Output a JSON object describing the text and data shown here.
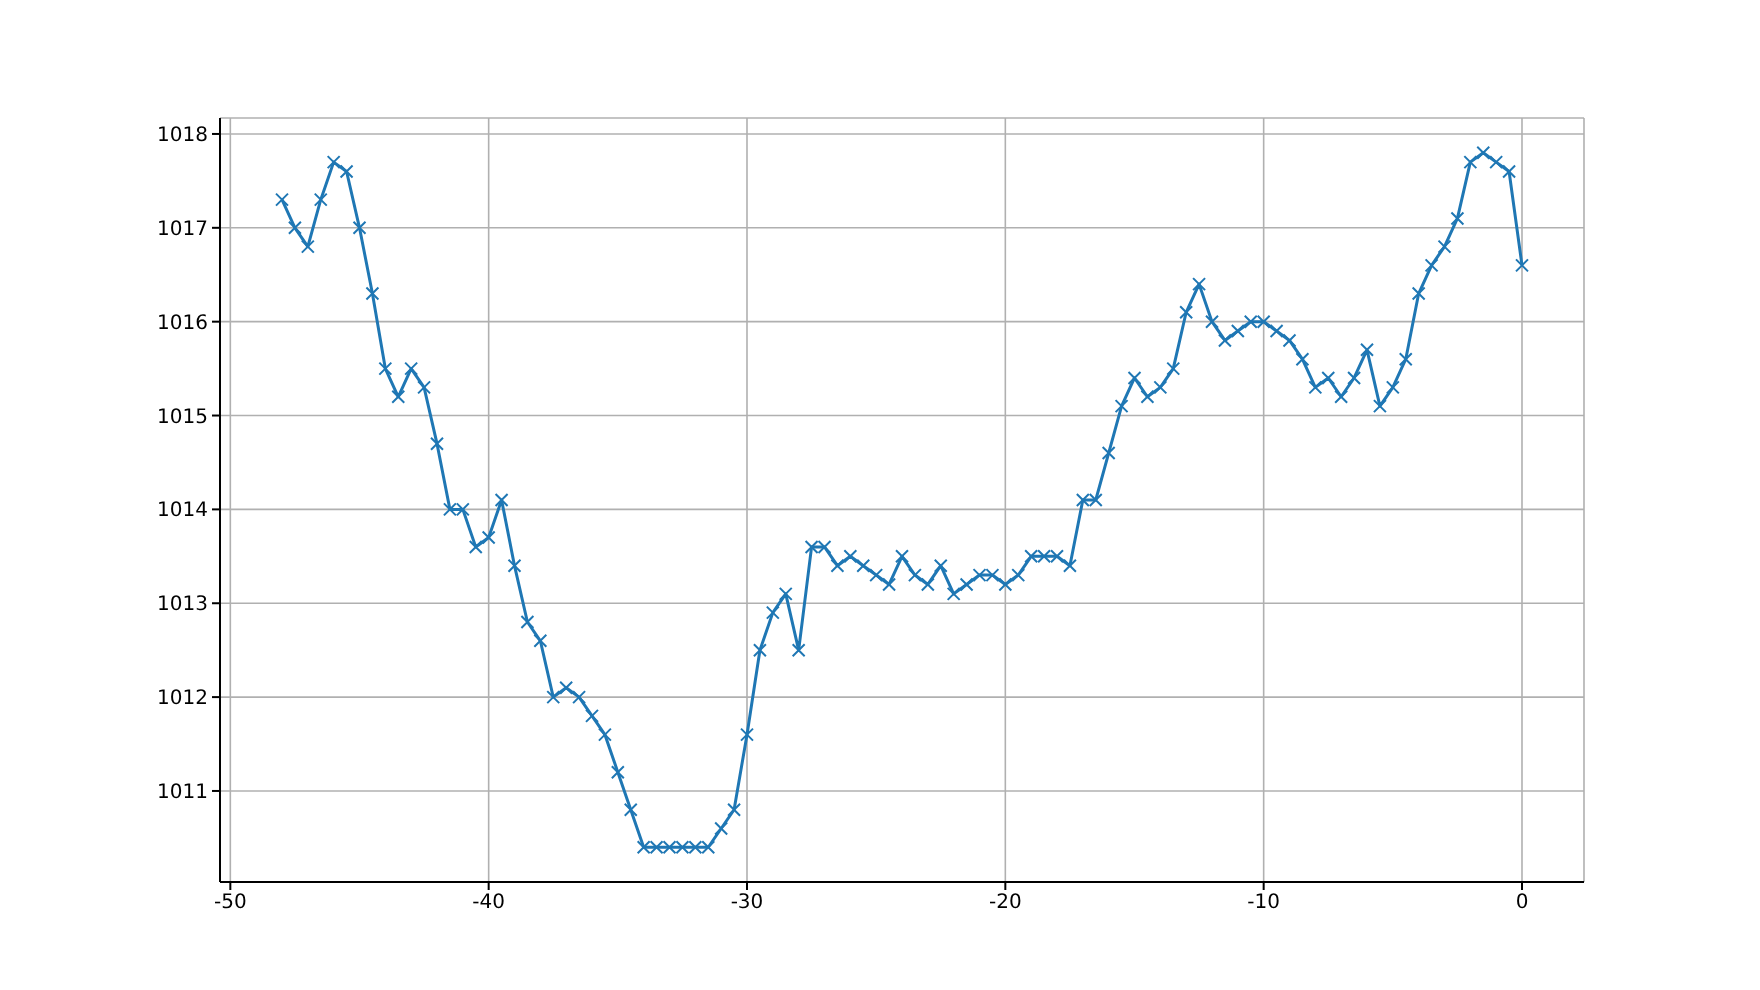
{
  "chart_data": {
    "type": "line",
    "x": [
      -48,
      -47.5,
      -47,
      -46.5,
      -46,
      -45.5,
      -45,
      -44.5,
      -44,
      -43.5,
      -43,
      -42.5,
      -42,
      -41.5,
      -41,
      -40.5,
      -40,
      -39.5,
      -39,
      -38.5,
      -38,
      -37.5,
      -37,
      -36.5,
      -36,
      -35.5,
      -35,
      -34.5,
      -34,
      -33.5,
      -33,
      -32.5,
      -32,
      -31.5,
      -31,
      -30.5,
      -30,
      -29.5,
      -29,
      -28.5,
      -28,
      -27.5,
      -27,
      -26.5,
      -26,
      -25.5,
      -25,
      -24.5,
      -24,
      -23.5,
      -23,
      -22.5,
      -22,
      -21.5,
      -21,
      -20.5,
      -20,
      -19.5,
      -19,
      -18.5,
      -18,
      -17.5,
      -17,
      -16.5,
      -16,
      -15.5,
      -15,
      -14.5,
      -14,
      -13.5,
      -13,
      -12.5,
      -12,
      -11.5,
      -11,
      -10.5,
      -10,
      -9.5,
      -9,
      -8.5,
      -8,
      -7.5,
      -7,
      -6.5,
      -6,
      -5.5,
      -5,
      -4.5,
      -4,
      -3.5,
      -3,
      -2.5,
      -2,
      -1.5,
      -1,
      -0.5,
      0
    ],
    "series": [
      {
        "color": "#1f77b4",
        "values": [
          1017.3,
          1017.0,
          1016.8,
          1017.3,
          1017.7,
          1017.6,
          1017.0,
          1016.3,
          1015.5,
          1015.2,
          1015.5,
          1015.3,
          1014.7,
          1014.0,
          1014.0,
          1013.6,
          1013.7,
          1014.1,
          1013.4,
          1012.8,
          1012.6,
          1012.0,
          1012.1,
          1012.0,
          1011.8,
          1011.6,
          1011.2,
          1010.8,
          1010.4,
          1010.4,
          1010.4,
          1010.4,
          1010.4,
          1010.4,
          1010.6,
          1010.8,
          1011.6,
          1012.5,
          1012.9,
          1013.1,
          1012.5,
          1013.6,
          1013.6,
          1013.4,
          1013.5,
          1013.4,
          1013.3,
          1013.2,
          1013.5,
          1013.3,
          1013.2,
          1013.4,
          1013.1,
          1013.2,
          1013.3,
          1013.3,
          1013.2,
          1013.3,
          1013.5,
          1013.5,
          1013.5,
          1013.4,
          1014.1,
          1014.1,
          1014.6,
          1015.1,
          1015.4,
          1015.2,
          1015.3,
          1015.5,
          1016.1,
          1016.4,
          1016.0,
          1015.8,
          1015.9,
          1016.0,
          1016.0,
          1015.9,
          1015.8,
          1015.6,
          1015.3,
          1015.4,
          1015.2,
          1015.4,
          1015.7,
          1015.1,
          1015.3,
          1015.6,
          1016.3,
          1016.6,
          1016.8,
          1017.1,
          1017.7,
          1017.8,
          1017.7,
          1017.6,
          1016.6
        ]
      }
    ],
    "xlim": [
      -50.4,
      2.4
    ],
    "xticks": [
      -50,
      -40,
      -30,
      -20,
      -10,
      0
    ],
    "ylim": [
      1010.03,
      1018.17
    ],
    "yticks": [
      1011,
      1012,
      1013,
      1014,
      1015,
      1016,
      1017,
      1018
    ],
    "grid": true,
    "marker": "cross",
    "line_style": "solid"
  }
}
